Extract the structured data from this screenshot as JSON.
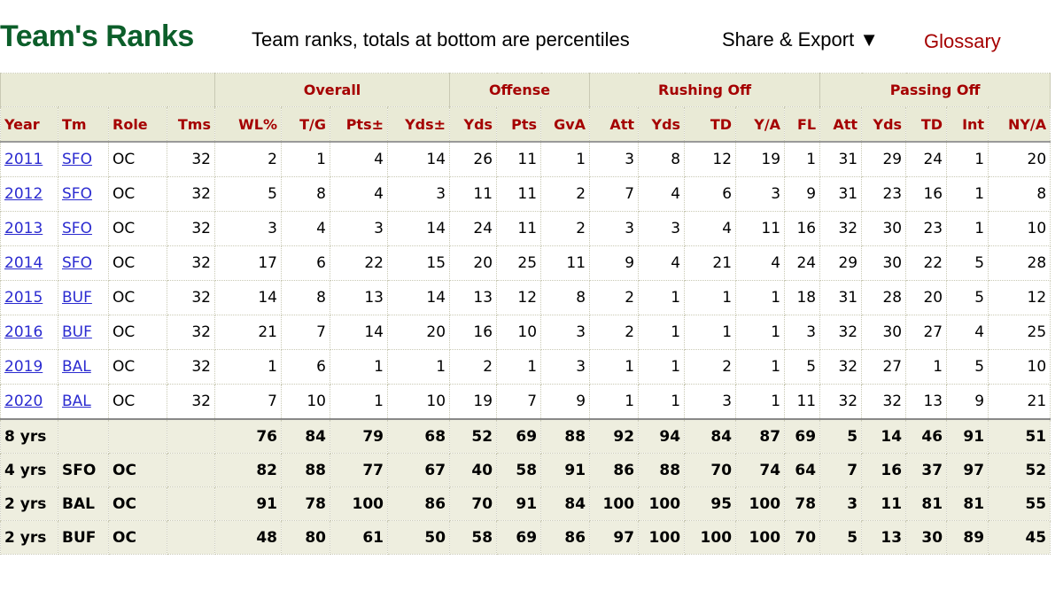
{
  "header": {
    "title": "Team's Ranks",
    "subtitle": "Team ranks, totals at bottom are percentiles",
    "share": "Share & Export ▼",
    "glossary": "Glossary"
  },
  "table": {
    "groups": [
      "Overall",
      "Offense",
      "Rushing Off",
      "Passing Off"
    ],
    "columns": [
      "Year",
      "Tm",
      "Role",
      "Tms",
      "WL%",
      "T/G",
      "Pts±",
      "Yds±",
      "Yds",
      "Pts",
      "GvA",
      "Att",
      "Yds",
      "TD",
      "Y/A",
      "FL",
      "Att",
      "Yds",
      "TD",
      "Int",
      "NY/A"
    ],
    "rows": [
      [
        "2011",
        "SFO",
        "OC",
        32,
        2,
        1,
        4,
        14,
        26,
        11,
        1,
        3,
        8,
        12,
        19,
        1,
        31,
        29,
        24,
        1,
        20
      ],
      [
        "2012",
        "SFO",
        "OC",
        32,
        5,
        8,
        4,
        3,
        11,
        11,
        2,
        7,
        4,
        6,
        3,
        9,
        31,
        23,
        16,
        1,
        8
      ],
      [
        "2013",
        "SFO",
        "OC",
        32,
        3,
        4,
        3,
        14,
        24,
        11,
        2,
        3,
        3,
        4,
        11,
        16,
        32,
        30,
        23,
        1,
        10
      ],
      [
        "2014",
        "SFO",
        "OC",
        32,
        17,
        6,
        22,
        15,
        20,
        25,
        11,
        9,
        4,
        21,
        4,
        24,
        29,
        30,
        22,
        5,
        28
      ],
      [
        "2015",
        "BUF",
        "OC",
        32,
        14,
        8,
        13,
        14,
        13,
        12,
        8,
        2,
        1,
        1,
        1,
        18,
        31,
        28,
        20,
        5,
        12
      ],
      [
        "2016",
        "BUF",
        "OC",
        32,
        21,
        7,
        14,
        20,
        16,
        10,
        3,
        2,
        1,
        1,
        1,
        3,
        32,
        30,
        27,
        4,
        25
      ],
      [
        "2019",
        "BAL",
        "OC",
        32,
        1,
        6,
        1,
        1,
        2,
        1,
        3,
        1,
        1,
        2,
        1,
        5,
        32,
        27,
        1,
        5,
        10
      ],
      [
        "2020",
        "BAL",
        "OC",
        32,
        7,
        10,
        1,
        10,
        19,
        7,
        9,
        1,
        1,
        3,
        1,
        11,
        32,
        32,
        13,
        9,
        21
      ]
    ],
    "totals": [
      [
        "8 yrs",
        null,
        null,
        null,
        76,
        84,
        79,
        68,
        52,
        69,
        88,
        92,
        94,
        84,
        87,
        69,
        5,
        14,
        46,
        91,
        51
      ],
      [
        "4 yrs",
        "SFO",
        "OC",
        null,
        82,
        88,
        77,
        67,
        40,
        58,
        91,
        86,
        88,
        70,
        74,
        64,
        7,
        16,
        37,
        97,
        52
      ],
      [
        "2 yrs",
        "BAL",
        "OC",
        null,
        91,
        78,
        100,
        86,
        70,
        91,
        84,
        100,
        100,
        95,
        100,
        78,
        3,
        11,
        81,
        81,
        55
      ],
      [
        "2 yrs",
        "BUF",
        "OC",
        null,
        48,
        80,
        61,
        50,
        58,
        69,
        86,
        97,
        100,
        100,
        100,
        70,
        5,
        13,
        30,
        89,
        45
      ]
    ]
  }
}
